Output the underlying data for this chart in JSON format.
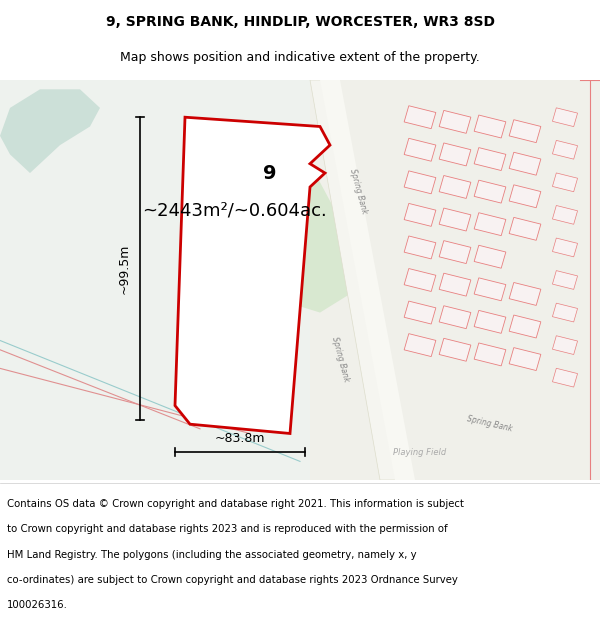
{
  "title_line1": "9, SPRING BANK, HINDLIP, WORCESTER, WR3 8SD",
  "title_line2": "Map shows position and indicative extent of the property.",
  "area_label": "~2443m²/~0.604ac.",
  "width_label": "~83.8m",
  "height_label": "~99.5m",
  "property_number": "9",
  "footnote": "Contains OS data © Crown copyright and database right 2021. This information is subject to Crown copyright and database rights 2023 and is reproduced with the permission of HM Land Registry. The polygons (including the associated geometry, namely x, y co-ordinates) are subject to Crown copyright and database rights 2023 Ordnance Survey 100026316.",
  "bg_color_main": "#f0f0ea",
  "bg_color_green": "#e8ede5",
  "bg_color_water": "#cce0d8",
  "road_color": "#ffffff",
  "property_fill": "#ffffff",
  "property_outline": "#cc0000",
  "other_outline": "#e88080",
  "title_fontsize": 10,
  "subtitle_fontsize": 9,
  "footnote_fontsize": 7.5
}
